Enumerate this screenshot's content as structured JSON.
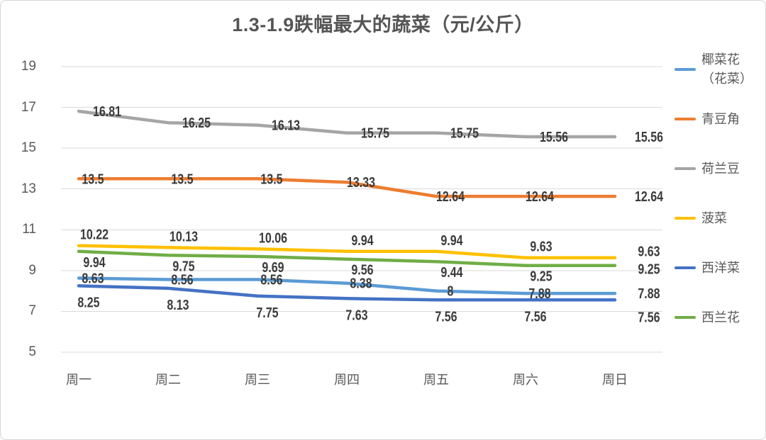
{
  "title": "1.3-1.9跌幅最大的蔬菜（元/公斤）",
  "chart_data": {
    "type": "line",
    "categories": [
      "周一",
      "周二",
      "周三",
      "周四",
      "周五",
      "周六",
      "周日"
    ],
    "y_ticks": [
      19,
      17,
      15,
      13,
      11,
      9,
      7,
      5
    ],
    "ylim": [
      5,
      19
    ],
    "xlabel": "",
    "ylabel": "",
    "grid": "horizontal",
    "legend_position": "right",
    "series": [
      {
        "name": "椰菜花（花菜）",
        "color": "#5B9BD5",
        "label_side": "above",
        "values": [
          8.63,
          8.56,
          8.56,
          8.38,
          8,
          7.88,
          7.88
        ]
      },
      {
        "name": "青豆角",
        "color": "#ED7D31",
        "label_side": "above",
        "values": [
          13.5,
          13.5,
          13.5,
          13.33,
          12.64,
          12.64,
          12.64
        ]
      },
      {
        "name": "荷兰豆",
        "color": "#A5A5A5",
        "label_side": "above",
        "values": [
          16.81,
          16.25,
          16.13,
          15.75,
          15.75,
          15.56,
          15.56
        ]
      },
      {
        "name": "菠菜",
        "color": "#FFC000",
        "label_side": "above",
        "values": [
          10.22,
          10.13,
          10.06,
          9.94,
          9.94,
          9.63,
          9.63
        ]
      },
      {
        "name": "西洋菜",
        "color": "#4472C4",
        "label_side": "below",
        "values": [
          8.25,
          8.13,
          7.75,
          7.63,
          7.56,
          7.56,
          7.56
        ]
      },
      {
        "name": "西兰花",
        "color": "#70AD47",
        "label_side": "below",
        "values": [
          9.94,
          9.75,
          9.69,
          9.56,
          9.44,
          9.25,
          9.25
        ]
      }
    ]
  },
  "colors": {
    "grid": "#d9d9d9",
    "axis_text": "#595959",
    "data_label": "#3b3b3b",
    "title": "#555555",
    "background": "#ffffff"
  }
}
